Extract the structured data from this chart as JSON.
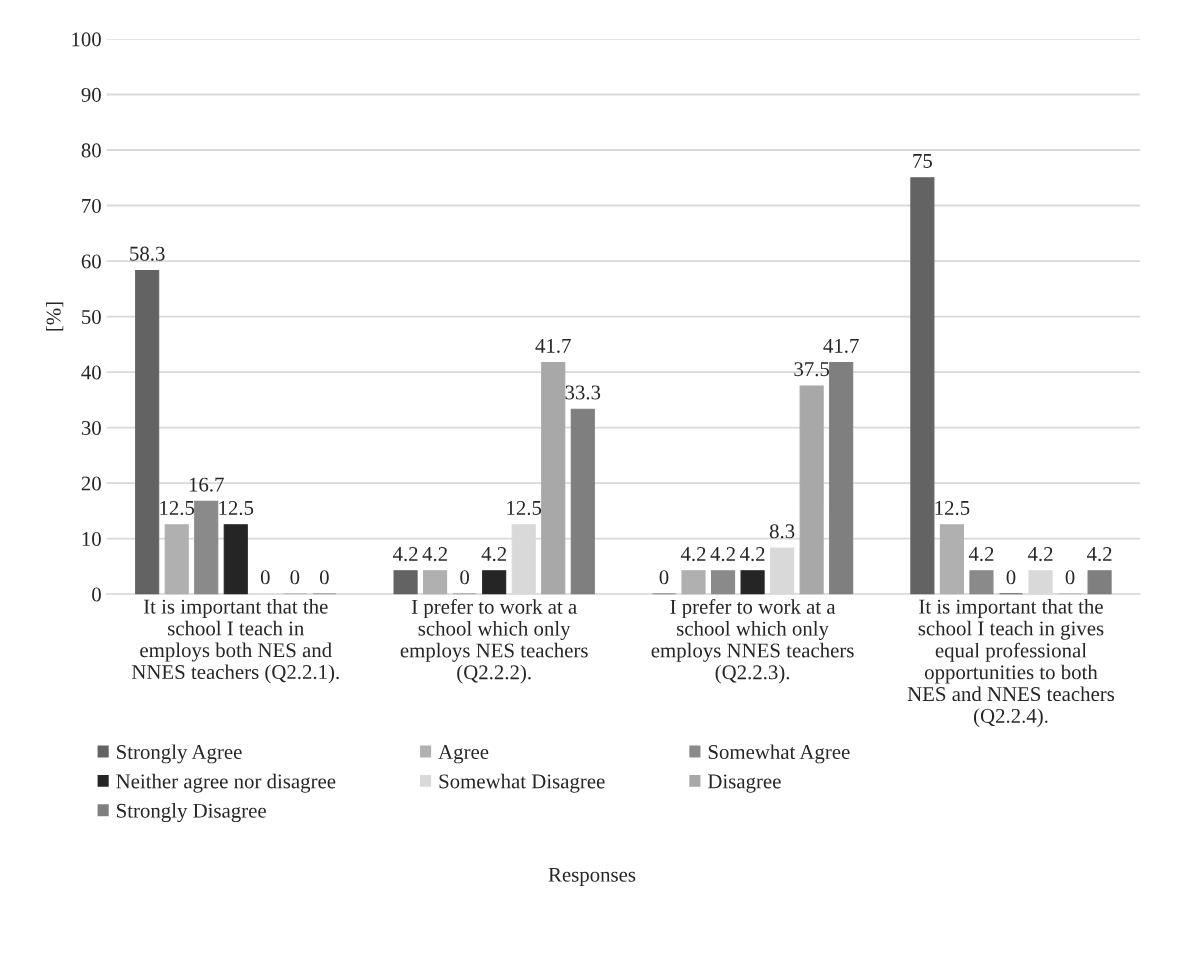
{
  "chart_data": {
    "type": "bar",
    "annotations": [
      "Responses"
    ],
    "ylabel": "[%]",
    "categories": [
      "It is important that the school I teach in employs both NES and NNES teachers (Q2.2.1).",
      "I prefer to work at a school which only employs NES teachers (Q2.2.2).",
      "I prefer to work at a school which only employs NNES teachers (Q2.2.3).",
      "It is important that the school I teach in gives equal professional opportunities to both NES and NNES teachers (Q2.2.4)."
    ],
    "series": [
      {
        "name": "Strongly Agree",
        "color": "#636363",
        "values": [
          58.3,
          4.2,
          0,
          75
        ]
      },
      {
        "name": "Agree",
        "color": "#b0b0b0",
        "values": [
          12.5,
          4.2,
          4.2,
          12.5
        ]
      },
      {
        "name": "Somewhat Agree",
        "color": "#8a8a8a",
        "values": [
          16.7,
          0,
          4.2,
          4.2
        ]
      },
      {
        "name": "Neither agree nor disagree",
        "color": "#252525",
        "values": [
          12.5,
          4.2,
          4.2,
          0
        ]
      },
      {
        "name": "Somewhat Disagree",
        "color": "#d9d9d9",
        "values": [
          0,
          12.5,
          8.3,
          4.2
        ]
      },
      {
        "name": "Disagree",
        "color": "#a8a8a8",
        "values": [
          0,
          41.7,
          37.5,
          0
        ]
      },
      {
        "name": "Strongly Disagree",
        "color": "#7f7f7f",
        "values": [
          0,
          33.3,
          41.7,
          4.2
        ]
      }
    ],
    "ylim": [
      0,
      100
    ],
    "yticks": [
      0,
      10,
      20,
      30,
      40,
      50,
      60,
      70,
      80,
      90,
      100
    ],
    "grid": "y",
    "legend": "bottom",
    "data_labels": true
  }
}
